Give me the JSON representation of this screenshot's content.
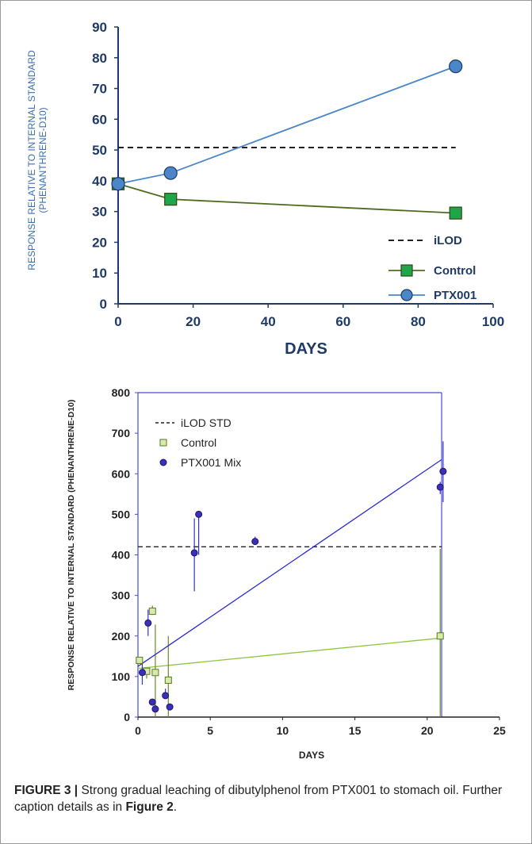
{
  "chart_data": [
    {
      "type": "line",
      "title": "",
      "xlabel": "DAYS",
      "ylabel": "RESPONSE RELATIVE TO INTERNAL STANDARD",
      "ylabel2": "(PHENANTHRENE-D10)",
      "xlim": [
        0,
        100
      ],
      "ylim": [
        0,
        90
      ],
      "xticks": [
        0,
        20,
        40,
        60,
        80,
        100
      ],
      "yticks": [
        0,
        10,
        20,
        30,
        40,
        50,
        60,
        70,
        80,
        90
      ],
      "grid": false,
      "legend_position": "bottom-right",
      "legend_labels": [
        "iLOD",
        "Control",
        "PTX001"
      ],
      "series": [
        {
          "name": "iLOD",
          "x": [
            0,
            90
          ],
          "values": [
            50.8,
            50.8
          ],
          "color": "#222222",
          "style": "dashed"
        },
        {
          "name": "Control",
          "x": [
            0,
            14,
            90
          ],
          "values": [
            39,
            34,
            29.5
          ],
          "color": "#4f6b1e",
          "marker_color": "#1fa64a",
          "marker": "square"
        },
        {
          "name": "PTX001",
          "x": [
            0,
            14,
            90
          ],
          "values": [
            39,
            42.5,
            77.2
          ],
          "color": "#4a86c8",
          "marker_color": "#4a86c8",
          "marker": "circle"
        }
      ]
    },
    {
      "type": "scatter",
      "title": "",
      "xlabel": "DAYS",
      "ylabel": "RESPONSE RELATIVE TO INTERNAL STANDARD (PHENANTHRENE-D10)",
      "xlim": [
        0,
        25
      ],
      "ylim": [
        0,
        800
      ],
      "xticks": [
        0,
        5,
        10,
        15,
        20,
        25
      ],
      "yticks": [
        0,
        100,
        200,
        300,
        400,
        500,
        600,
        700,
        800
      ],
      "grid": false,
      "legend_position": "top-left",
      "legend_labels": [
        "iLOD STD",
        "Control",
        "PTX001 Mix"
      ],
      "ilod": {
        "x": [
          0,
          21
        ],
        "value": 420,
        "color": "#222222"
      },
      "series": [
        {
          "name": "Control",
          "color": "#8cc63f",
          "edge_color": "#5a7a1a",
          "marker": "square",
          "x": [
            0.1,
            0.6,
            1.0,
            1.2,
            2.1,
            20.9
          ],
          "values": [
            140,
            113,
            261,
            110,
            91,
            200
          ],
          "err_low": [
            null,
            95,
            252,
            0,
            0,
            0
          ],
          "err_high": [
            null,
            120,
            275,
            228,
            200,
            415
          ],
          "trend": [
            [
              0,
              120
            ],
            [
              21,
              195
            ]
          ],
          "trend_color": "#8cc63f"
        },
        {
          "name": "PTX001 Mix",
          "color": "#3a2fb5",
          "edge_color": "#1a1470",
          "marker": "circle",
          "x": [
            0.3,
            0.7,
            1.0,
            1.2,
            1.9,
            2.2,
            3.9,
            4.2,
            8.1,
            20.9,
            21.1
          ],
          "values": [
            110,
            232,
            37,
            20,
            53,
            25,
            405,
            500,
            433,
            567,
            606
          ],
          "err_low": [
            80,
            200,
            null,
            null,
            45,
            null,
            310,
            400,
            425,
            550,
            530
          ],
          "err_high": [
            140,
            265,
            null,
            null,
            70,
            null,
            490,
            null,
            445,
            580,
            680
          ],
          "trend": [
            [
              0,
              125
            ],
            [
              21,
              635
            ]
          ],
          "trend_color": "#2b2bd6"
        }
      ]
    }
  ],
  "caption": {
    "label": "FIGURE 3 |",
    "text1": " Strong gradual leaching of dibutylphenol from PTX001 to stomach oil. Further caption details as in ",
    "ref": "Figure 2",
    "text2": "."
  }
}
